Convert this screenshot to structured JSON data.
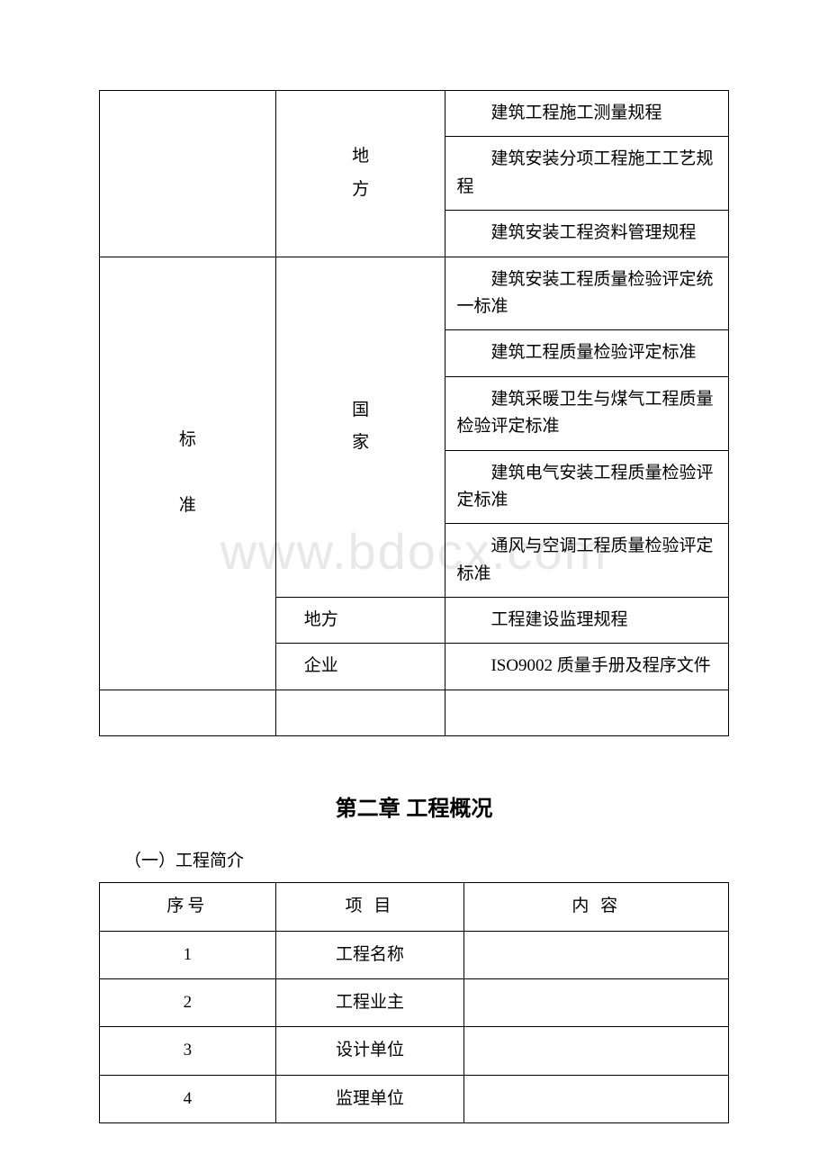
{
  "watermark": "www.bdocx.com",
  "table1": {
    "rows": [
      {
        "col1": "",
        "col2_stacked": [
          "地",
          "方"
        ],
        "col2_rowspan": 3,
        "col3": "建筑工程施工测量规程"
      },
      {
        "col3": "建筑安装分项工程施工工艺规程"
      },
      {
        "col3": "建筑安装工程资料管理规程"
      },
      {
        "col1_stacked": [
          "标",
          "准"
        ],
        "col1_rowspan": 7,
        "col2_stacked": [
          "国",
          "家"
        ],
        "col2_rowspan": 5,
        "col3": "建筑安装工程质量检验评定统一标准"
      },
      {
        "col3": "建筑工程质量检验评定标准"
      },
      {
        "col3": "建筑采暖卫生与煤气工程质量检验评定标准"
      },
      {
        "col3": "建筑电气安装工程质量检验评定标准"
      },
      {
        "col3": "通风与空调工程质量检验评定标准"
      },
      {
        "col2": "地方",
        "col3": "工程建设监理规程"
      },
      {
        "col2": "企业",
        "col3": "ISO9002 质量手册及程序文件"
      }
    ],
    "empty_row": true
  },
  "chapter_title": "第二章 工程概况",
  "section_heading": "（一）工程简介",
  "table2": {
    "headers": [
      "序号",
      "项 目",
      "内 容"
    ],
    "rows": [
      {
        "num": "1",
        "item": "工程名称",
        "content": ""
      },
      {
        "num": "2",
        "item": "工程业主",
        "content": ""
      },
      {
        "num": "3",
        "item": "设计单位",
        "content": ""
      },
      {
        "num": "4",
        "item": "监理单位",
        "content": ""
      }
    ]
  }
}
